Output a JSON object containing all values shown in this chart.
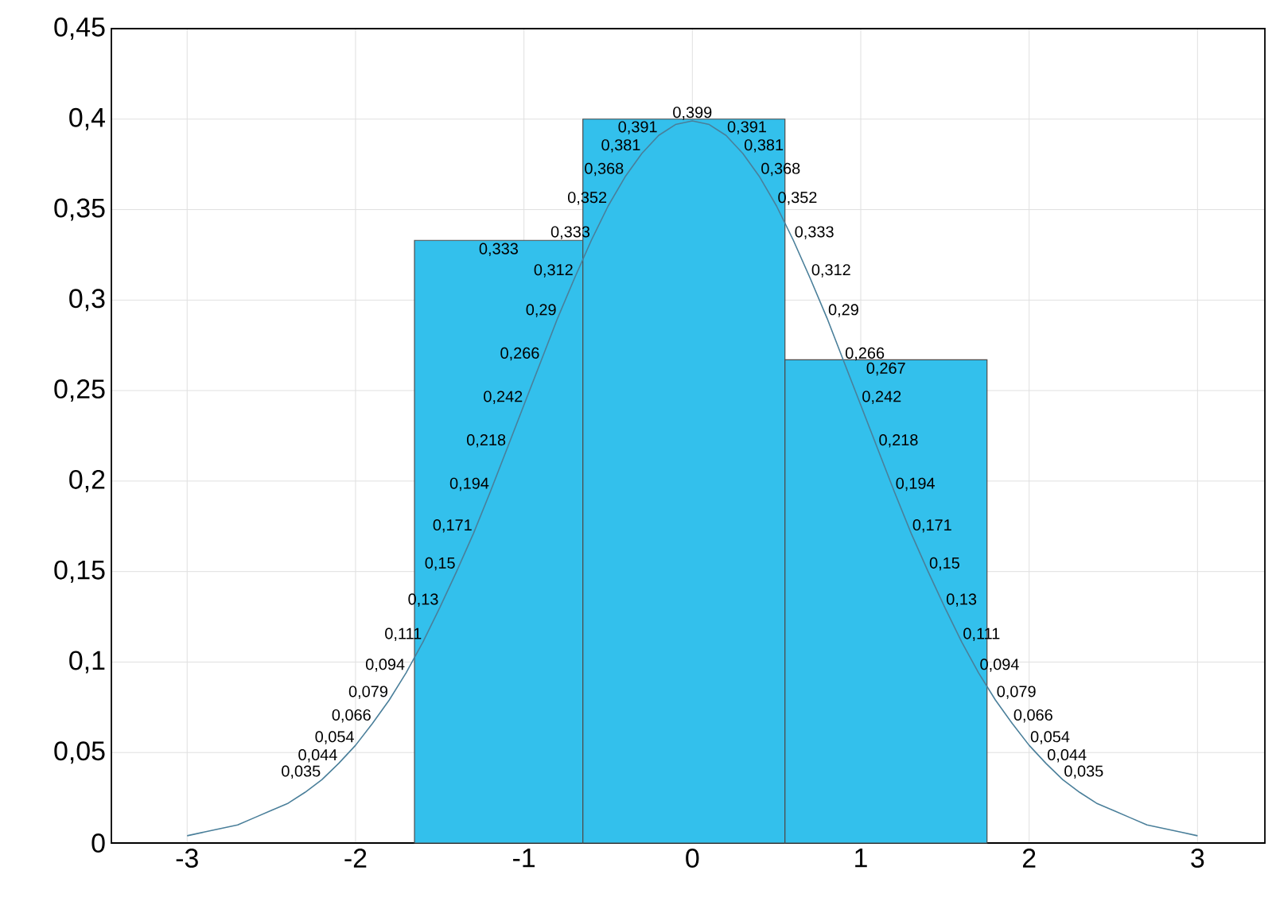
{
  "chart_data": {
    "type": "histogram",
    "xlim": [
      -3.45,
      3.4
    ],
    "ylim": [
      0,
      0.45
    ],
    "xticks": [
      -3,
      -2,
      -1,
      0,
      1,
      2,
      3
    ],
    "yticks": [
      {
        "value": 0,
        "label": "0"
      },
      {
        "value": 0.05,
        "label": "0,05"
      },
      {
        "value": 0.1,
        "label": "0,1"
      },
      {
        "value": 0.15,
        "label": "0,15"
      },
      {
        "value": 0.2,
        "label": "0,2"
      },
      {
        "value": 0.25,
        "label": "0,25"
      },
      {
        "value": 0.3,
        "label": "0,3"
      },
      {
        "value": 0.35,
        "label": "0,35"
      },
      {
        "value": 0.4,
        "label": "0,4"
      },
      {
        "value": 0.45,
        "label": "0,45"
      }
    ],
    "grid": true,
    "series": [
      {
        "color": "#33c0ec",
        "bins": [
          -1.65,
          -0.65,
          0.55,
          1.75
        ],
        "values": [
          0.333,
          0.4,
          0.267
        ],
        "value_labels": [
          "0,333",
          null,
          "0,267"
        ]
      },
      {
        "type": "line",
        "color": "#4a7f9a",
        "marker": "none",
        "x": [
          -3,
          -2.9,
          -2.8,
          -2.7,
          -2.6,
          -2.5,
          -2.4,
          -2.3,
          -2.2,
          -2.1,
          -2,
          -1.9,
          -1.8,
          -1.7,
          -1.6,
          -1.5,
          -1.4,
          -1.3,
          -1.2,
          -1.1,
          -1,
          -0.9,
          -0.8,
          -0.7,
          -0.6,
          -0.5,
          -0.4,
          -0.3,
          -0.2,
          -0.1,
          0,
          0.1,
          0.2,
          0.3,
          0.4,
          0.5,
          0.6,
          0.7,
          0.8,
          0.9,
          1,
          1.1,
          1.2,
          1.3,
          1.4,
          1.5,
          1.6,
          1.7,
          1.8,
          1.9,
          2,
          2.1,
          2.2,
          2.3,
          2.4,
          2.5,
          2.6,
          2.7,
          2.8,
          2.9,
          3
        ],
        "values": [
          0.004,
          0.006,
          0.008,
          0.01,
          0.014,
          0.018,
          0.022,
          0.028,
          0.035,
          0.044,
          0.054,
          0.066,
          0.079,
          0.094,
          0.111,
          0.13,
          0.15,
          0.171,
          0.194,
          0.218,
          0.242,
          0.266,
          0.29,
          0.312,
          0.333,
          0.352,
          0.368,
          0.381,
          0.391,
          0.397,
          0.399,
          0.397,
          0.391,
          0.381,
          0.368,
          0.352,
          0.333,
          0.312,
          0.29,
          0.266,
          0.242,
          0.218,
          0.194,
          0.171,
          0.15,
          0.13,
          0.111,
          0.094,
          0.079,
          0.066,
          0.054,
          0.044,
          0.035,
          0.028,
          0.022,
          0.018,
          0.014,
          0.01,
          0.008,
          0.006,
          0.004
        ],
        "value_labels": [
          null,
          null,
          null,
          null,
          null,
          null,
          null,
          null,
          "0,035",
          "0,044",
          "0,054",
          "0,066",
          "0,079",
          "0,094",
          "0,111",
          "0,13",
          "0,15",
          "0,171",
          "0,194",
          "0,218",
          "0,242",
          "0,266",
          "0,29",
          "0,312",
          "0,333",
          "0,352",
          "0,368",
          "0,381",
          "0,391",
          null,
          "0,399",
          null,
          "0,391",
          "0,381",
          "0,368",
          "0,352",
          "0,333",
          "0,312",
          "0,29",
          "0,266",
          "0,242",
          "0,218",
          "0,194",
          "0,171",
          "0,15",
          "0,13",
          "0,111",
          "0,094",
          "0,079",
          "0,066",
          "0,054",
          "0,044",
          "0,035",
          null,
          null,
          null,
          null,
          null,
          null,
          null,
          null
        ]
      }
    ]
  }
}
